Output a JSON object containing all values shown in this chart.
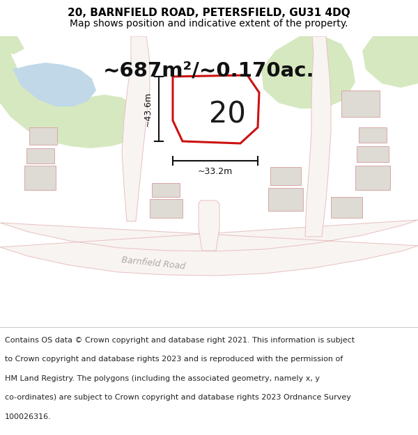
{
  "title_line1": "20, BARNFIELD ROAD, PETERSFIELD, GU31 4DQ",
  "title_line2": "Map shows position and indicative extent of the property.",
  "area_text": "~687m²/~0.170ac.",
  "property_number": "20",
  "dim_vertical": "~43.6m",
  "dim_horizontal": "~33.2m",
  "footer_lines": [
    "Contains OS data © Crown copyright and database right 2021. This information is subject",
    "to Crown copyright and database rights 2023 and is reproduced with the permission of",
    "HM Land Registry. The polygons (including the associated geometry, namely x, y",
    "co-ordinates) are subject to Crown copyright and database rights 2023 Ordnance Survey",
    "100026316."
  ],
  "map_bg": "#f2eeea",
  "road_fill": "#f8f4f2",
  "road_outline": "#e8c0c0",
  "green_color": "#d6e8c0",
  "water_color": "#c0d8e8",
  "building_fill": "#dedad4",
  "building_outline": "#d8a8a8",
  "property_color": "#cc1111",
  "dim_color": "#111111",
  "title_fontsize": 11,
  "subtitle_fontsize": 10,
  "area_fontsize": 21,
  "number_fontsize": 30,
  "dim_fontsize": 9,
  "footer_fontsize": 8,
  "road_label_fontsize": 9
}
